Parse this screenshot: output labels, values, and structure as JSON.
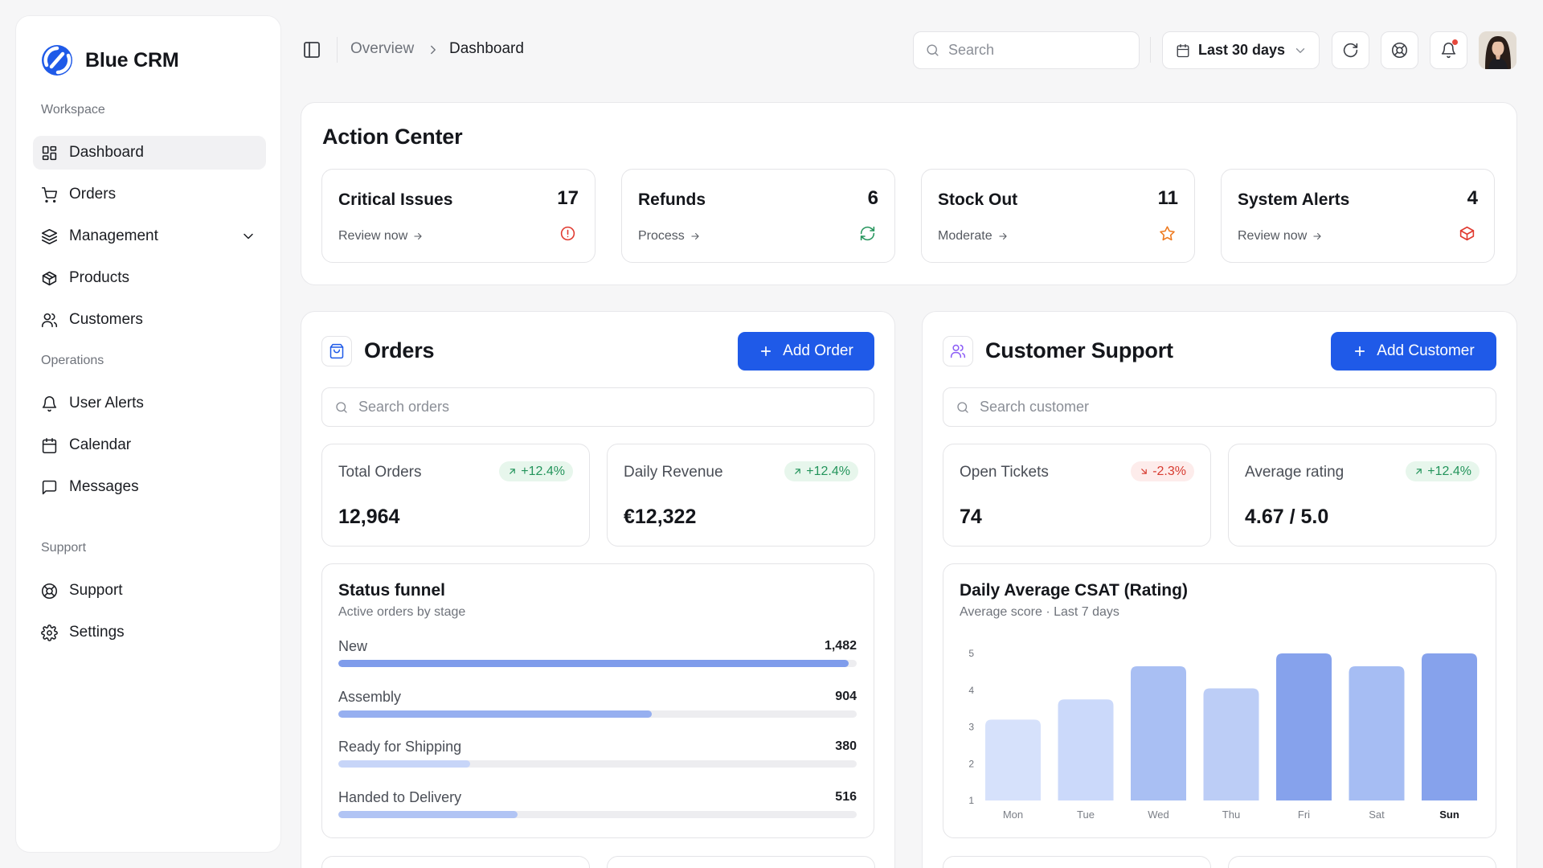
{
  "app": {
    "name": "Blue CRM"
  },
  "sidebar": {
    "sections": [
      "Workspace",
      "Operations",
      "Support"
    ],
    "workspace": [
      {
        "label": "Dashboard"
      },
      {
        "label": "Orders"
      },
      {
        "label": "Management"
      },
      {
        "label": "Products"
      },
      {
        "label": "Customers"
      }
    ],
    "operations": [
      {
        "label": "User Alerts"
      },
      {
        "label": "Calendar"
      },
      {
        "label": "Messages"
      }
    ],
    "support": [
      {
        "label": "Support"
      },
      {
        "label": "Settings"
      }
    ]
  },
  "topbar": {
    "breadcrumb": [
      "Overview",
      "Dashboard"
    ],
    "search_placeholder": "Search",
    "date_range": "Last 30 days"
  },
  "action_center": {
    "title": "Action Center",
    "cards": [
      {
        "title": "Critical Issues",
        "count": "17",
        "link": "Review now",
        "icon": "alert-circle-icon",
        "color": "#e0392f"
      },
      {
        "title": "Refunds",
        "count": "6",
        "link": "Process",
        "icon": "refresh-icon",
        "color": "#23945b"
      },
      {
        "title": "Stock Out",
        "count": "11",
        "link": "Moderate",
        "icon": "star-icon",
        "color": "#ee7a1f"
      },
      {
        "title": "System Alerts",
        "count": "4",
        "link": "Review now",
        "icon": "box-icon",
        "color": "#e0392f"
      }
    ]
  },
  "orders": {
    "title": "Orders",
    "add_label": "Add Order",
    "search_placeholder": "Search orders",
    "stats": [
      {
        "label": "Total Orders",
        "value": "12,964",
        "change": "+12.4%",
        "trend": "up"
      },
      {
        "label": "Daily Revenue",
        "value": "€12,322",
        "change": "+12.4%",
        "trend": "up"
      }
    ],
    "funnel": {
      "title": "Status funnel",
      "subtitle": "Active orders by stage",
      "rows": [
        {
          "label": "New",
          "value": "1,482",
          "fraction": 0.985,
          "color": "#7f9ceb"
        },
        {
          "label": "Assembly",
          "value": "904",
          "fraction": 0.605,
          "color": "#96aff0"
        },
        {
          "label": "Ready for Shipping",
          "value": "380",
          "fraction": 0.255,
          "color": "#c7d5f8"
        },
        {
          "label": "Handed to Delivery",
          "value": "516",
          "fraction": 0.345,
          "color": "#b1c4f4"
        }
      ]
    }
  },
  "support": {
    "title": "Customer Support",
    "add_label": "Add Customer",
    "search_placeholder": "Search customer",
    "stats": [
      {
        "label": "Open Tickets",
        "value": "74",
        "change": "-2.3%",
        "trend": "down"
      },
      {
        "label": "Average rating",
        "value": "4.67 / 5.0",
        "change": "+12.4%",
        "trend": "up"
      }
    ],
    "csat": {
      "title": "Daily Average CSAT (Rating)",
      "subtitle": "Average score · Last 7 days"
    }
  },
  "chart_data": {
    "type": "bar",
    "title": "Daily Average CSAT (Rating)",
    "subtitle": "Average score · Last 7 days",
    "categories": [
      "Mon",
      "Tue",
      "Wed",
      "Thu",
      "Fri",
      "Sat",
      "Sun"
    ],
    "values": [
      3.2,
      3.75,
      4.65,
      4.05,
      5.0,
      4.65,
      5.0
    ],
    "colors": [
      "#d6e1fb",
      "#cbd9fa",
      "#a9bff3",
      "#bccdf6",
      "#86a2ec",
      "#a6bdf3",
      "#86a2ec"
    ],
    "highlight": "Sun",
    "yticks": [
      1,
      2,
      3,
      4,
      5
    ],
    "ylim": [
      1,
      5
    ],
    "grid": false
  }
}
